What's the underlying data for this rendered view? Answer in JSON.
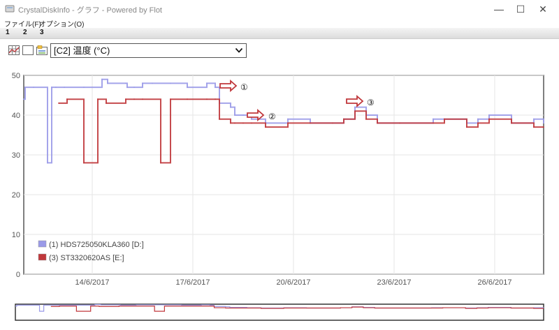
{
  "window": {
    "title": "CrystalDiskInfo - グラフ - Powered by Flot",
    "minimize": "—",
    "maximize": "☐",
    "close": "✕"
  },
  "menu": {
    "file": "ファイル(F)",
    "options": "オプション(O)"
  },
  "numbar": [
    "1",
    "2",
    "3"
  ],
  "toolbar": {
    "icons": [
      "grid-chart-icon",
      "blank-window-icon",
      "color-chart-icon"
    ],
    "selected_attribute": "[C2] 温度 (°C)"
  },
  "colors": {
    "series1": "#9a9ae8",
    "series2": "#c0373b",
    "frame": "#555555",
    "grid": "#e6e6e6",
    "arrow": "#c0373b"
  },
  "annotations": [
    "①",
    "②",
    "③"
  ],
  "chart_data": {
    "type": "line",
    "title": "",
    "xlabel": "",
    "ylabel": "",
    "ylim": [
      0,
      50
    ],
    "yticks": [
      0,
      10,
      20,
      30,
      40,
      50
    ],
    "xlim": [
      "2017-06-11T23:00",
      "2017-06-27T11:00"
    ],
    "xticks": [
      "14/6/2017",
      "17/6/2017",
      "20/6/2017",
      "23/6/2017",
      "26/6/2017"
    ],
    "grid": true,
    "legend_position": "bottom-left",
    "series": [
      {
        "name": "(1) HDS725050KLA360 [D:]",
        "x": [
          "2017-06-11T23:00",
          "2017-06-12T00:00",
          "2017-06-12T06:00",
          "2017-06-12T16:00",
          "2017-06-12T19:00",
          "2017-06-12T22:00",
          "2017-06-13T04:00",
          "2017-06-13T18:00",
          "2017-06-14T07:00",
          "2017-06-14T11:00",
          "2017-06-15T00:00",
          "2017-06-15T01:00",
          "2017-06-15T06:00",
          "2017-06-15T12:00",
          "2017-06-15T19:00",
          "2017-06-16T08:00",
          "2017-06-16T20:00",
          "2017-06-17T10:00",
          "2017-06-17T16:00",
          "2017-06-17T19:00",
          "2017-06-18T03:00",
          "2017-06-18T06:00",
          "2017-06-18T12:00",
          "2017-06-18T18:00",
          "2017-06-19T04:00",
          "2017-06-19T20:00",
          "2017-06-20T12:00",
          "2017-06-21T04:00",
          "2017-06-21T12:00",
          "2017-06-21T20:00",
          "2017-06-22T04:00",
          "2017-06-22T12:00",
          "2017-06-23T04:00",
          "2017-06-24T04:00",
          "2017-06-24T12:00",
          "2017-06-25T04:00",
          "2017-06-25T12:00",
          "2017-06-25T20:00",
          "2017-06-26T12:00",
          "2017-06-27T04:00",
          "2017-06-27T11:00"
        ],
        "values": [
          44,
          47,
          47,
          28,
          47,
          47,
          47,
          47,
          49,
          48,
          48,
          47,
          47,
          48,
          48,
          48,
          47,
          48,
          47,
          43,
          42,
          40,
          40,
          39,
          38,
          39,
          38,
          38,
          39,
          42,
          40,
          38,
          38,
          39,
          39,
          38,
          39,
          40,
          38,
          39,
          38
        ]
      },
      {
        "name": "(3) ST3320620AS [E:]",
        "x": [
          "2017-06-13T00:00",
          "2017-06-13T06:00",
          "2017-06-13T18:00",
          "2017-06-14T04:00",
          "2017-06-14T10:00",
          "2017-06-15T00:00",
          "2017-06-15T06:00",
          "2017-06-15T12:00",
          "2017-06-16T01:00",
          "2017-06-16T08:00",
          "2017-06-16T20:00",
          "2017-06-17T10:00",
          "2017-06-17T16:00",
          "2017-06-17T19:00",
          "2017-06-18T03:00",
          "2017-06-18T06:00",
          "2017-06-18T12:00",
          "2017-06-18T18:00",
          "2017-06-19T04:00",
          "2017-06-19T20:00",
          "2017-06-20T12:00",
          "2017-06-21T04:00",
          "2017-06-21T12:00",
          "2017-06-21T20:00",
          "2017-06-22T04:00",
          "2017-06-22T12:00",
          "2017-06-23T04:00",
          "2017-06-24T04:00",
          "2017-06-24T12:00",
          "2017-06-25T04:00",
          "2017-06-25T12:00",
          "2017-06-25T20:00",
          "2017-06-26T12:00",
          "2017-06-27T04:00",
          "2017-06-27T11:00"
        ],
        "values": [
          43,
          44,
          28,
          44,
          43,
          44,
          44,
          44,
          28,
          44,
          44,
          44,
          44,
          39,
          38,
          38,
          38,
          38,
          37,
          38,
          38,
          38,
          39,
          41,
          39,
          38,
          38,
          38,
          39,
          37,
          38,
          39,
          38,
          37,
          37
        ]
      }
    ]
  }
}
